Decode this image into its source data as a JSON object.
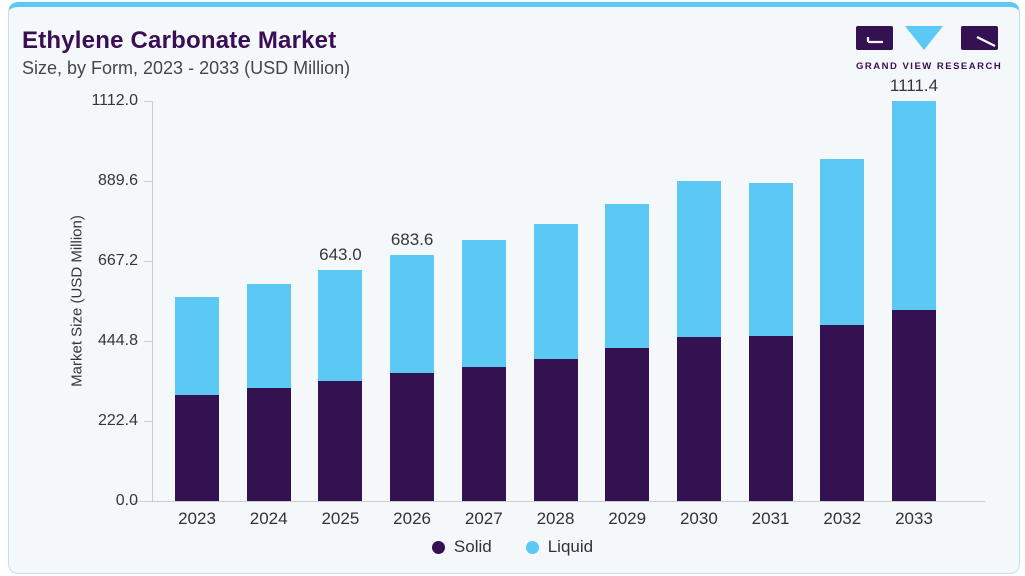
{
  "header": {
    "title": "Ethylene Carbonate Market",
    "subtitle": "Size, by Form, 2023 - 2033 (USD Million)",
    "logo_text": "GRAND VIEW RESEARCH"
  },
  "colors": {
    "card_background": "#F4F8FB",
    "card_border": "#BFE2F0",
    "top_accent": "#5BC9F3",
    "solid_series": "#341151",
    "liquid_series": "#5BC9F3",
    "title_text": "#3A0E54",
    "axis_text": "#33373C",
    "axis_line": "#C9CED3"
  },
  "chart_data": {
    "type": "bar",
    "stacked": true,
    "title": "Ethylene Carbonate Market Size, by Form, 2023 - 2033 (USD Million)",
    "categories": [
      "2023",
      "2024",
      "2025",
      "2026",
      "2027",
      "2028",
      "2029",
      "2030",
      "2031",
      "2032",
      "2033"
    ],
    "series": [
      {
        "name": "Solid",
        "color": "#341151",
        "values": [
          294.2,
          313.3,
          332.3,
          355.0,
          372.4,
          395.8,
          425.8,
          456.8,
          457.5,
          490.3,
          532.1
        ]
      },
      {
        "name": "Liquid",
        "color": "#5BC9F3",
        "values": [
          272.8,
          288.7,
          310.7,
          328.6,
          353.0,
          374.3,
          398.8,
          432.0,
          425.9,
          460.4,
          579.3
        ]
      }
    ],
    "totals": [
      567.0,
      602.0,
      643.0,
      683.6,
      725.4,
      770.1,
      824.6,
      888.8,
      883.4,
      950.7,
      1111.4
    ],
    "point_labels": [
      null,
      null,
      "643.0",
      "683.6",
      null,
      null,
      null,
      null,
      null,
      null,
      "1111.4"
    ],
    "xlabel": "",
    "ylabel": "Market Size (USD Million)",
    "ylim": [
      0,
      1112
    ],
    "yticks": [
      0.0,
      222.4,
      444.8,
      667.2,
      889.6,
      1112.0
    ],
    "ytick_labels": [
      "0.0",
      "222.4",
      "444.8",
      "667.2",
      "889.6",
      "1112.0"
    ],
    "grid": false,
    "legend": [
      "Solid",
      "Liquid"
    ],
    "legend_position": "bottom"
  }
}
